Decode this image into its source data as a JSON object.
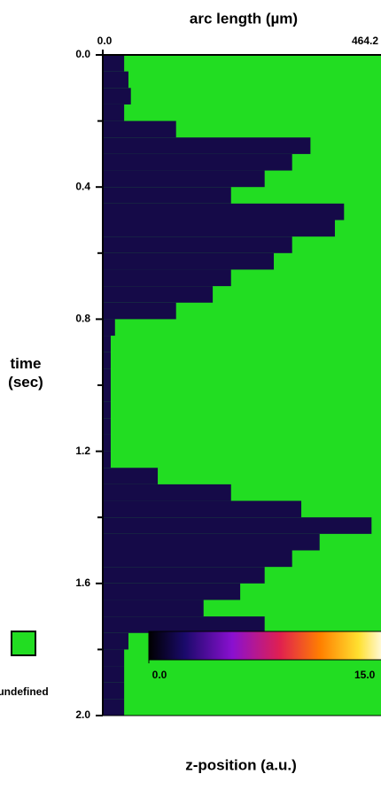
{
  "chart_data": {
    "type": "heatmap",
    "x_label": "arc length (µm)",
    "y_label": "time (sec)",
    "xlim": [
      0,
      464.2
    ],
    "xticks": [
      {
        "value": 0,
        "label": "0.0"
      },
      464.2
    ],
    "ylim": [
      0,
      2
    ],
    "yticks": [
      {
        "value": 0,
        "label": "0.0"
      },
      0.4,
      0.8,
      1.2,
      1.6,
      {
        "value": 2,
        "label": "2.0"
      }
    ],
    "yminor": [
      0.2,
      0.6,
      1,
      1.4,
      1.8
    ],
    "y": [
      0,
      0.05,
      0.1,
      0.15,
      0.2,
      0.25,
      0.3,
      0.35,
      0.4,
      0.45,
      0.5,
      0.55,
      0.6,
      0.65,
      0.7,
      0.75,
      0.8,
      0.85,
      0.9,
      0.95,
      1,
      1.05,
      1.1,
      1.15,
      1.2,
      1.25,
      1.3,
      1.35,
      1.4,
      1.45,
      1.5,
      1.55,
      1.6,
      1.65,
      1.7,
      1.75,
      1.8,
      1.85,
      1.9,
      1.95
    ],
    "values": [
      35,
      42,
      46,
      35,
      120,
      340,
      310,
      265,
      210,
      395,
      380,
      310,
      280,
      210,
      180,
      120,
      20,
      13,
      13,
      13,
      13,
      13,
      13,
      13,
      13,
      90,
      210,
      325,
      440,
      355,
      310,
      265,
      225,
      165,
      265,
      42,
      35,
      35,
      35,
      35
    ],
    "color": "#150a48",
    "undefined_color": "#22dd22",
    "undefined_label": "undefined",
    "colorbar": {
      "label": "z-position (a.u.)",
      "lim": [
        0,
        15
      ],
      "ticks": [
        {
          "value": 0,
          "label": "0.0"
        },
        {
          "value": 15,
          "label": "15.0"
        }
      ]
    }
  }
}
